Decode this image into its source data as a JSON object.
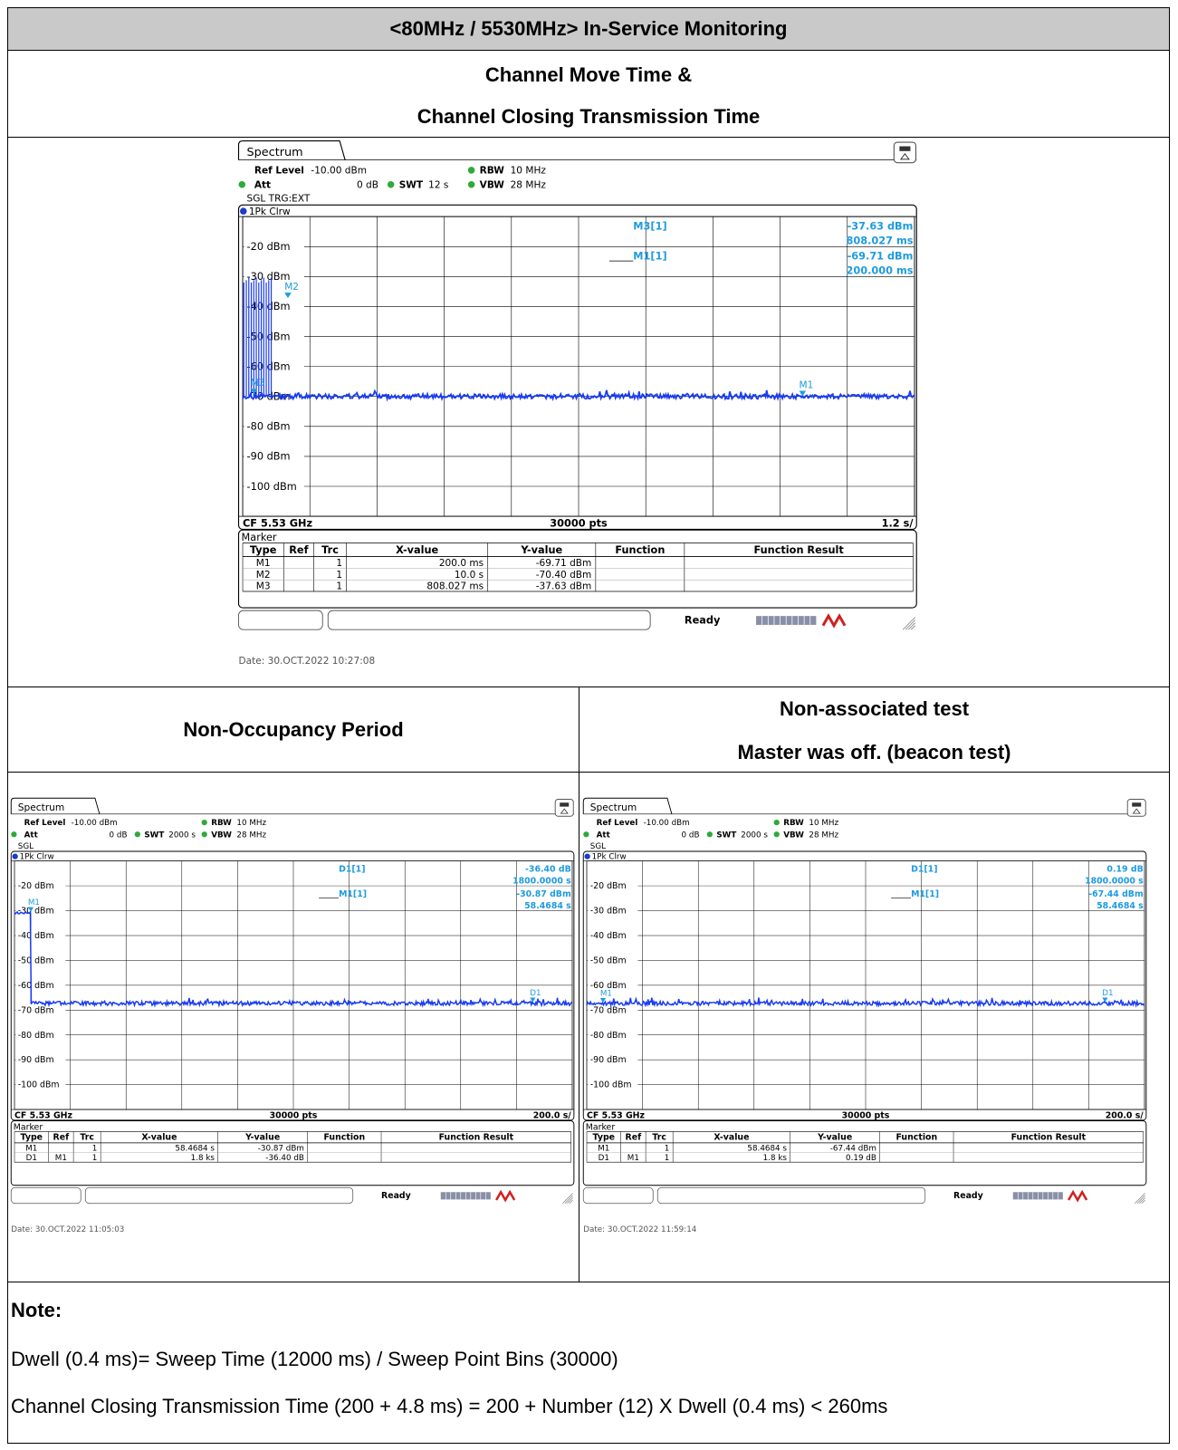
{
  "header": {
    "title": "<80MHz / 5530MHz> In-Service Monitoring",
    "section1_line1": "Channel Move Time &",
    "section1_line2": "Channel Closing Transmission Time",
    "nop_title": "Non-Occupancy Period",
    "nonassoc_line1": "Non-associated test",
    "nonassoc_line2": "Master was off. (beacon test)"
  },
  "colors": {
    "trace": "#1a3cf0",
    "marker": "#1e9be0",
    "header_bg": "#c9c9c9",
    "led": "#2eaa3a",
    "rs_red": "#d02020"
  },
  "plots": [
    {
      "id": "main",
      "tab_label": "Spectrum",
      "ref_level_label": "Ref Level",
      "ref_level_value": "-10.00 dBm",
      "att_label": "Att",
      "att_value": "0 dB",
      "swt_label": "SWT",
      "swt_value": "12 s",
      "rbw_label": "RBW",
      "rbw_value": "10 MHz",
      "vbw_label": "VBW",
      "vbw_value": "28 MHz",
      "mode_line": "SGL TRG:EXT",
      "trace_label": "1Pk Clrw",
      "y_ticks": [
        "-20 dBm",
        "-30 dBm",
        "-40 dBm",
        "-50 dBm",
        "-60 dBm",
        "-70 dBm",
        "-80 dBm",
        "-90 dBm",
        "-100 dBm"
      ],
      "marker_readout": [
        {
          "label": "M3[1]",
          "value1": "-37.63 dBm",
          "value2": "808.027 ms"
        },
        {
          "label": "M1[1]",
          "value1": "-69.71 dBm",
          "value2": "200.000 ms"
        }
      ],
      "plot_markers": [
        "M3",
        "M1",
        "M2"
      ],
      "footer_left": "CF 5.53 GHz",
      "footer_mid": "30000 pts",
      "footer_right": "1.2 s/",
      "marker_title": "Marker",
      "table_headers": [
        "Type",
        "Ref",
        "Trc",
        "X-value",
        "Y-value",
        "Function",
        "Function Result"
      ],
      "table_rows": [
        [
          "M1",
          "",
          "1",
          "200.0 ms",
          "-69.71 dBm",
          "",
          ""
        ],
        [
          "M2",
          "",
          "1",
          "10.0 s",
          "-70.40 dBm",
          "",
          ""
        ],
        [
          "M3",
          "",
          "1",
          "808.027 ms",
          "-37.63 dBm",
          "",
          ""
        ]
      ],
      "status": "Ready",
      "date": "Date: 30.OCT.2022  10:27:08"
    },
    {
      "id": "nop",
      "tab_label": "Spectrum",
      "ref_level_label": "Ref Level",
      "ref_level_value": "-10.00 dBm",
      "att_label": "Att",
      "att_value": "0 dB",
      "swt_label": "SWT",
      "swt_value": "2000 s",
      "rbw_label": "RBW",
      "rbw_value": "10 MHz",
      "vbw_label": "VBW",
      "vbw_value": "28 MHz",
      "mode_line": "SGL",
      "trace_label": "1Pk Clrw",
      "y_ticks": [
        "-20 dBm",
        "-30 dBm",
        "-40 dBm",
        "-50 dBm",
        "-60 dBm",
        "-70 dBm",
        "-80 dBm",
        "-90 dBm",
        "-100 dBm"
      ],
      "marker_readout": [
        {
          "label": "D1[1]",
          "value1": "-36.40 dB",
          "value2": "1800.0000 s"
        },
        {
          "label": "M1[1]",
          "value1": "-30.87 dBm",
          "value2": "58.4684 s"
        }
      ],
      "plot_markers": [
        "M1",
        "D1"
      ],
      "footer_left": "CF 5.53 GHz",
      "footer_mid": "30000 pts",
      "footer_right": "200.0 s/",
      "marker_title": "Marker",
      "table_headers": [
        "Type",
        "Ref",
        "Trc",
        "X-value",
        "Y-value",
        "Function",
        "Function Result"
      ],
      "table_rows": [
        [
          "M1",
          "",
          "1",
          "58.4684 s",
          "-30.87 dBm",
          "",
          ""
        ],
        [
          "D1",
          "M1",
          "1",
          "1.8 ks",
          "-36.40 dB",
          "",
          ""
        ]
      ],
      "status": "Ready",
      "date": "Date: 30.OCT.2022  11:05:03"
    },
    {
      "id": "nonassoc",
      "tab_label": "Spectrum",
      "ref_level_label": "Ref Level",
      "ref_level_value": "-10.00 dBm",
      "att_label": "Att",
      "att_value": "0 dB",
      "swt_label": "SWT",
      "swt_value": "2000 s",
      "rbw_label": "RBW",
      "rbw_value": "10 MHz",
      "vbw_label": "VBW",
      "vbw_value": "28 MHz",
      "mode_line": "SGL",
      "trace_label": "1Pk Clrw",
      "y_ticks": [
        "-20 dBm",
        "-30 dBm",
        "-40 dBm",
        "-50 dBm",
        "-60 dBm",
        "-70 dBm",
        "-80 dBm",
        "-90 dBm",
        "-100 dBm"
      ],
      "marker_readout": [
        {
          "label": "D1[1]",
          "value1": "0.19 dB",
          "value2": "1800.0000 s"
        },
        {
          "label": "M1[1]",
          "value1": "-67.44 dBm",
          "value2": "58.4684 s"
        }
      ],
      "plot_markers": [
        "M1",
        "D1"
      ],
      "footer_left": "CF 5.53 GHz",
      "footer_mid": "30000 pts",
      "footer_right": "200.0 s/",
      "marker_title": "Marker",
      "table_headers": [
        "Type",
        "Ref",
        "Trc",
        "X-value",
        "Y-value",
        "Function",
        "Function Result"
      ],
      "table_rows": [
        [
          "M1",
          "",
          "1",
          "58.4684 s",
          "-67.44 dBm",
          "",
          ""
        ],
        [
          "D1",
          "M1",
          "1",
          "1.8 ks",
          "0.19 dB",
          "",
          ""
        ]
      ],
      "status": "Ready",
      "date": "Date: 30.OCT.2022  11:59:14"
    }
  ],
  "chart_data": [
    {
      "type": "line",
      "title": "",
      "xlabel": "",
      "ylabel": "",
      "xlim": [
        0,
        12
      ],
      "x_unit": "s",
      "ylim": [
        -110,
        -10
      ],
      "y_unit": "dBm",
      "grid": true,
      "series": [
        {
          "name": "1Pk Clrw",
          "noise_floor": -70,
          "bursts": {
            "x_start": 0.02,
            "x_end": 0.51,
            "count": 12,
            "peak": -32
          }
        }
      ],
      "markers": [
        {
          "name": "M1",
          "x": 0.2,
          "y": -69.71
        },
        {
          "name": "M2",
          "x": 10.0,
          "y": -70.4
        },
        {
          "name": "M3",
          "x": 0.808027,
          "y": -37.63
        }
      ]
    },
    {
      "type": "line",
      "title": "",
      "xlabel": "",
      "ylabel": "",
      "xlim": [
        0,
        2000
      ],
      "x_unit": "s",
      "ylim": [
        -110,
        -10
      ],
      "y_unit": "dBm",
      "grid": true,
      "series": [
        {
          "name": "1Pk Clrw",
          "noise_floor": -67.3,
          "initial_level": -30.87,
          "drop_at": 58.4684
        }
      ],
      "markers": [
        {
          "name": "M1",
          "x": 58.4684,
          "y": -30.87
        },
        {
          "name": "D1",
          "x": 1858.4684,
          "y": -67.27
        }
      ]
    },
    {
      "type": "line",
      "title": "",
      "xlabel": "",
      "ylabel": "",
      "xlim": [
        0,
        2000
      ],
      "x_unit": "s",
      "ylim": [
        -110,
        -10
      ],
      "y_unit": "dBm",
      "grid": true,
      "series": [
        {
          "name": "1Pk Clrw",
          "noise_floor": -67.3
        }
      ],
      "markers": [
        {
          "name": "M1",
          "x": 58.4684,
          "y": -67.44
        },
        {
          "name": "D1",
          "x": 1858.4684,
          "y": -67.25
        }
      ]
    }
  ],
  "notes": {
    "label": "Note:",
    "line1": "Dwell (0.4 ms)= Sweep Time (12000 ms) / Sweep Point Bins (30000)",
    "line2": "Channel Closing Transmission Time (200 + 4.8 ms) = 200 + Number (12) X Dwell (0.4 ms) < 260ms"
  }
}
